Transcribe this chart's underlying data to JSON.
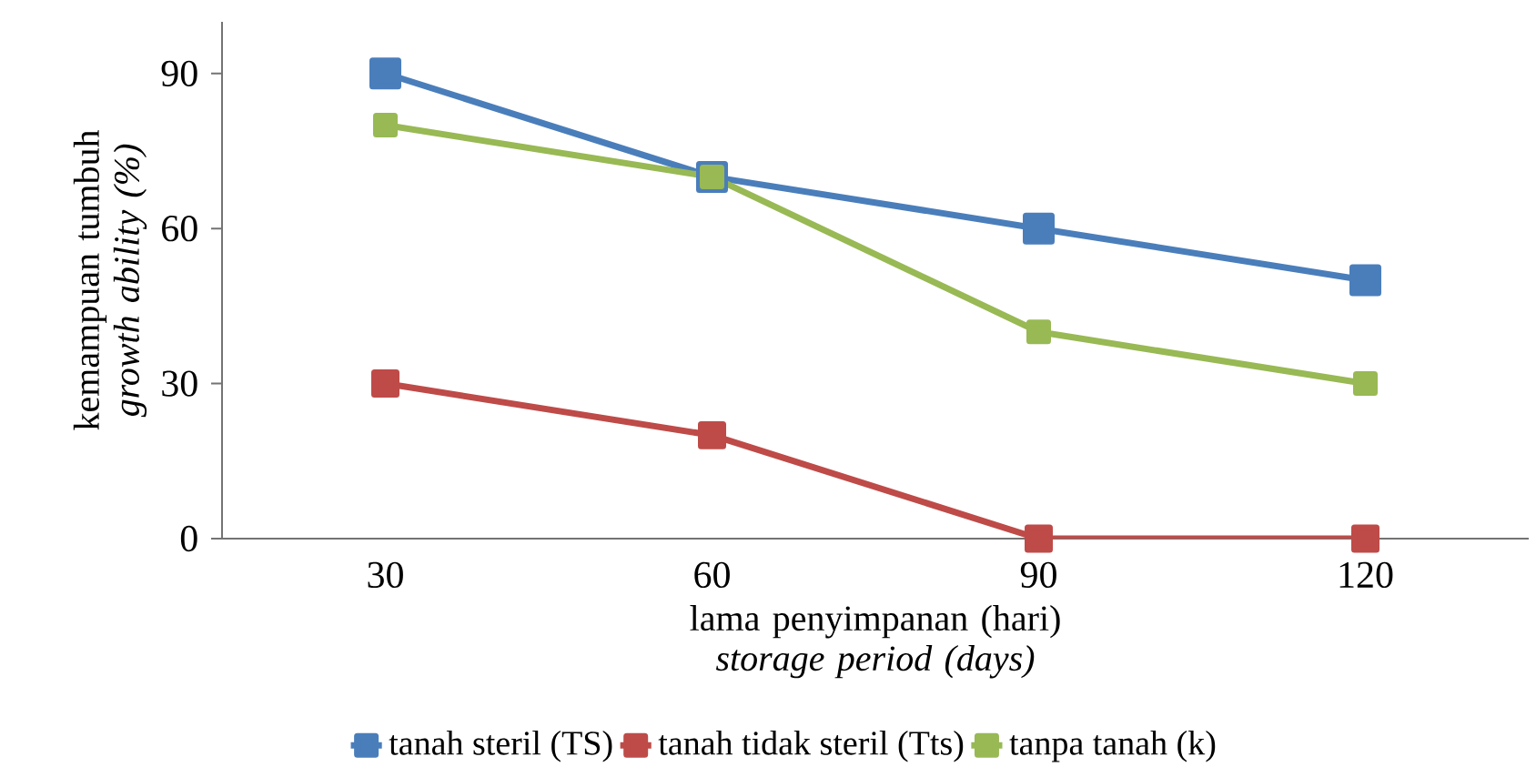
{
  "chart_data": {
    "type": "line",
    "xlabel": "lama penyimpanan (hari) *storage period (days)*",
    "ylabel": "kemampuan tumbuh *growth ability (%)*",
    "categories": [
      "30",
      "60",
      "90",
      "120"
    ],
    "series": [
      {
        "name": "tanah steril (TS)",
        "color": "#4a7ebb",
        "values": [
          90,
          70,
          60,
          50
        ]
      },
      {
        "name": "tanah tidak steril (Tts)",
        "color": "#be4b48",
        "values": [
          30,
          20,
          0,
          0
        ]
      },
      {
        "name": "tanpa tanah  (k)",
        "color": "#98b954",
        "values": [
          80,
          70,
          40,
          30
        ]
      }
    ],
    "ylim": [
      0,
      100
    ],
    "yticks": [
      0,
      30,
      60,
      90
    ],
    "legend": "bottom",
    "marker": "square",
    "line_style": "solid"
  }
}
